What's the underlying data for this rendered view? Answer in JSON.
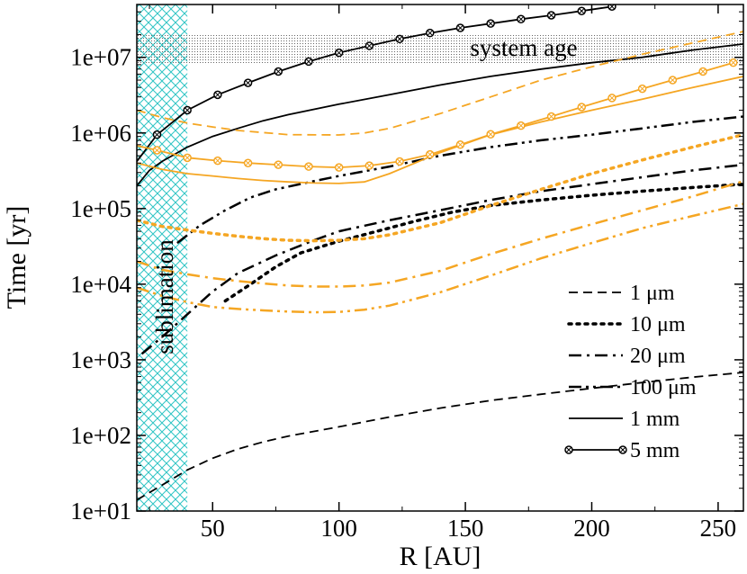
{
  "chart_data": {
    "type": "line",
    "title": "",
    "xlabel": "R [AU]",
    "ylabel": "Time [yr]",
    "xlim": [
      20,
      260
    ],
    "ylim": [
      10,
      50000000
    ],
    "yscale": "log",
    "x_ticks": [
      50,
      100,
      150,
      200,
      250
    ],
    "x_tick_labels": [
      "50",
      "100",
      "150",
      "200",
      "250"
    ],
    "y_ticks": [
      10,
      100,
      1000,
      10000,
      100000,
      1000000,
      10000000
    ],
    "y_tick_labels": [
      "1e+01",
      "1e+02",
      "1e+03",
      "1e+04",
      "1e+05",
      "1e+06",
      "1e+07"
    ],
    "colors": {
      "black": "#000000",
      "orange": "#f5a623",
      "cyan": "#2ec4c4",
      "band": "#888888"
    },
    "regions": {
      "sublimation": {
        "label": "sublimation",
        "x_range": [
          20,
          40
        ]
      },
      "system_age": {
        "label": "system age",
        "y_range": [
          8000000,
          20000000
        ]
      }
    },
    "legend": {
      "position": "bottom-right",
      "entries": [
        {
          "label": "1 μm",
          "style": "dashed"
        },
        {
          "label": "10 μm",
          "style": "dotted"
        },
        {
          "label": "20 μm",
          "style": "dashdot"
        },
        {
          "label": "100 μm",
          "style": "dashdotdot"
        },
        {
          "label": "1 mm",
          "style": "solid"
        },
        {
          "label": "5 mm",
          "style": "solid-marker"
        }
      ]
    },
    "series": [
      {
        "name": "1 μm",
        "color": "black",
        "style": "dashed",
        "x": [
          20,
          30,
          40,
          50,
          60,
          70,
          80,
          100,
          120,
          140,
          160,
          180,
          200,
          220,
          240,
          260
        ],
        "y": [
          14,
          22,
          35,
          50,
          66,
          82,
          98,
          130,
          175,
          230,
          290,
          350,
          420,
          500,
          590,
          680
        ]
      },
      {
        "name": "10 μm",
        "color": "black",
        "style": "dotted",
        "x": [
          55,
          65,
          75,
          85,
          100,
          115,
          130,
          145,
          160,
          180,
          200,
          220,
          240,
          260
        ],
        "y": [
          6000,
          10000,
          17000,
          26000,
          37000,
          50000,
          68000,
          90000,
          110000,
          130000,
          150000,
          170000,
          190000,
          210000
        ]
      },
      {
        "name": "20 μm",
        "color": "black",
        "style": "dashdot",
        "x": [
          22,
          30,
          40,
          50,
          60,
          75,
          90,
          100,
          120,
          140,
          160,
          180,
          200,
          220,
          240,
          260
        ],
        "y": [
          1200,
          2000,
          4000,
          8000,
          14000,
          24000,
          38000,
          50000,
          70000,
          95000,
          130000,
          170000,
          210000,
          260000,
          320000,
          380000
        ]
      },
      {
        "name": "100 μm",
        "color": "black",
        "style": "dashdotdot",
        "x": [
          36,
          45,
          55,
          65,
          75,
          90,
          100,
          120,
          140,
          160,
          180,
          200,
          220,
          240,
          260
        ],
        "y": [
          35000,
          60000,
          95000,
          140000,
          180000,
          230000,
          270000,
          360000,
          500000,
          650000,
          800000,
          950000,
          1150000,
          1400000,
          1650000
        ]
      },
      {
        "name": "1 mm",
        "color": "black",
        "style": "solid",
        "x": [
          20,
          25,
          30,
          40,
          50,
          60,
          70,
          80,
          100,
          120,
          140,
          160,
          180,
          200,
          220,
          240,
          260
        ],
        "y": [
          200000,
          320000,
          420000,
          650000,
          900000,
          1150000,
          1450000,
          1750000,
          2400000,
          3200000,
          4300000,
          5600000,
          7000000,
          8500000,
          10000000,
          12500000,
          15000000
        ]
      },
      {
        "name": "5 mm",
        "color": "black",
        "style": "solid-marker",
        "x": [
          20,
          28,
          40,
          52,
          64,
          76,
          88,
          100,
          112,
          124,
          136,
          148,
          160,
          172,
          184,
          196,
          208
        ],
        "y": [
          420000,
          950000,
          2000000,
          3200000,
          4600000,
          6500000,
          8800000,
          11500000,
          14200000,
          17500000,
          21000000,
          24500000,
          28000000,
          32000000,
          36000000,
          41000000,
          47000000
        ]
      },
      {
        "name": "orange 1 μm",
        "color": "orange",
        "style": "dashed",
        "x": [
          20,
          30,
          40,
          50,
          60,
          80,
          100,
          110,
          120,
          140,
          160,
          180,
          200,
          220,
          240,
          260
        ],
        "y": [
          2000000,
          1600000,
          1350000,
          1200000,
          1080000,
          950000,
          940000,
          1000000,
          1150000,
          1800000,
          3000000,
          5000000,
          7500000,
          11000000,
          15500000,
          22000000
        ]
      },
      {
        "name": "orange 10 μm",
        "color": "orange",
        "style": "dotted",
        "x": [
          20,
          30,
          40,
          50,
          60,
          70,
          80,
          90,
          100,
          110,
          120,
          140,
          160,
          180,
          200,
          220,
          240,
          260
        ],
        "y": [
          70000,
          58000,
          52000,
          47000,
          43000,
          40000,
          38000,
          37500,
          38000,
          40000,
          45000,
          65000,
          110000,
          180000,
          290000,
          440000,
          650000,
          950000
        ]
      },
      {
        "name": "orange 20 μm",
        "color": "orange",
        "style": "dashdot",
        "x": [
          20,
          30,
          40,
          50,
          60,
          70,
          80,
          90,
          100,
          110,
          120,
          140,
          160,
          180,
          200,
          220,
          240,
          260
        ],
        "y": [
          20000,
          15500,
          13500,
          12000,
          11000,
          10200,
          9600,
          9300,
          9300,
          9600,
          10500,
          15000,
          25000,
          40000,
          62000,
          95000,
          145000,
          230000
        ]
      },
      {
        "name": "orange 100 μm",
        "color": "orange",
        "style": "dashdotdot",
        "x": [
          20,
          30,
          40,
          50,
          60,
          70,
          80,
          90,
          100,
          110,
          120,
          140,
          160,
          180,
          200,
          220,
          240,
          260
        ],
        "y": [
          9000,
          7000,
          5800,
          5000,
          4700,
          4500,
          4350,
          4250,
          4300,
          4600,
          5200,
          7800,
          13000,
          22000,
          35000,
          55000,
          80000,
          115000
        ]
      },
      {
        "name": "orange 1 mm",
        "color": "orange",
        "style": "solid",
        "x": [
          20,
          30,
          40,
          50,
          60,
          70,
          80,
          90,
          100,
          110,
          120,
          140,
          160,
          180,
          200,
          220,
          240,
          260
        ],
        "y": [
          400000,
          330000,
          290000,
          270000,
          250000,
          235000,
          225000,
          218000,
          215000,
          225000,
          290000,
          550000,
          950000,
          1400000,
          2000000,
          2800000,
          4000000,
          5600000
        ]
      },
      {
        "name": "orange 5 mm",
        "color": "orange",
        "style": "solid-marker",
        "x": [
          20,
          28,
          40,
          52,
          64,
          76,
          88,
          100,
          112,
          124,
          136,
          148,
          160,
          172,
          184,
          196,
          208,
          220,
          232,
          244,
          256
        ],
        "y": [
          680000,
          590000,
          470000,
          430000,
          400000,
          380000,
          360000,
          350000,
          370000,
          420000,
          520000,
          700000,
          960000,
          1250000,
          1650000,
          2200000,
          2900000,
          3850000,
          5000000,
          6500000,
          8500000
        ]
      }
    ]
  }
}
